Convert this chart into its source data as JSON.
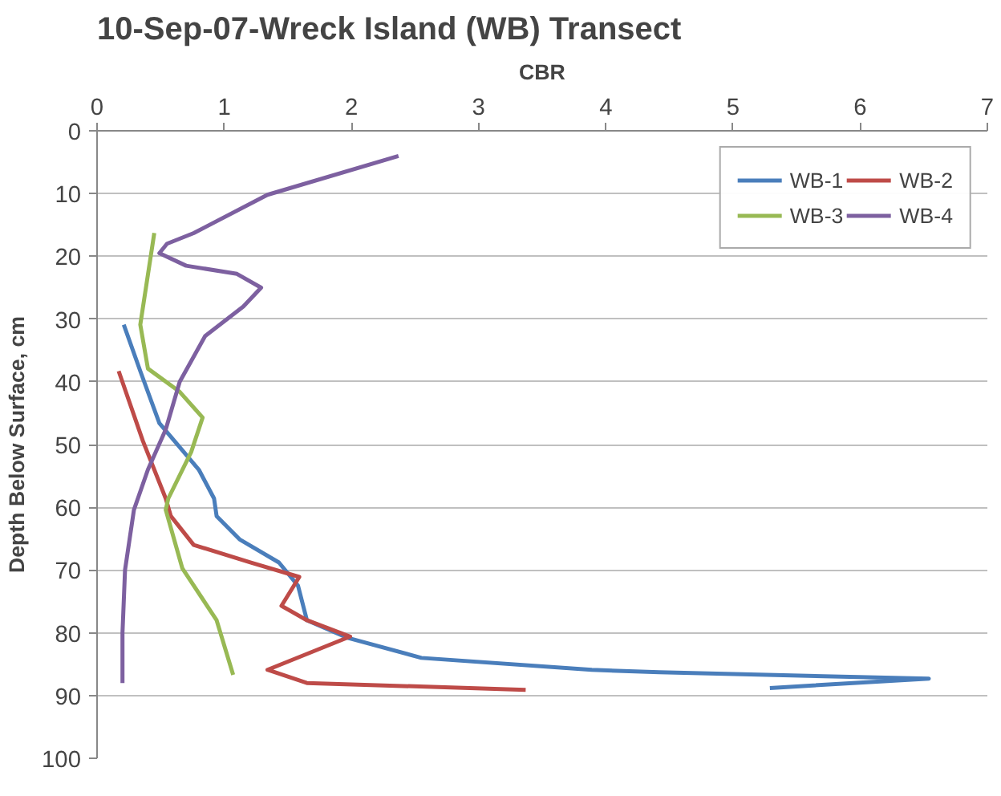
{
  "chart_data": {
    "type": "line",
    "title": "10-Sep-07-Wreck Island (WB) Transect",
    "xlabel": "CBR",
    "ylabel": "Depth Below Surface, cm",
    "xlim": [
      0,
      7
    ],
    "xticks": [
      0,
      1,
      2,
      3,
      4,
      5,
      6,
      7
    ],
    "ylim": [
      100,
      0
    ],
    "yticks": [
      0,
      10,
      20,
      30,
      40,
      50,
      60,
      70,
      80,
      90,
      100
    ],
    "grid": "y",
    "legend": "top right",
    "marker": "none",
    "line_style": "solid",
    "series": [
      {
        "name": "WB-1",
        "color": "#4a7ebb",
        "x": [
          0.21,
          0.34,
          0.49,
          0.8,
          0.92,
          0.94,
          1.12,
          1.43,
          1.58,
          1.65,
          1.97,
          2.55,
          3.89,
          4.42,
          6.54,
          5.29
        ],
        "values": [
          30.9,
          38.3,
          46.6,
          54,
          58.6,
          61.4,
          65.1,
          68.8,
          72.5,
          78,
          80.8,
          84,
          85.9,
          86.3,
          87.3,
          88.8
        ]
      },
      {
        "name": "WB-2",
        "color": "#be4b48",
        "x": [
          0.17,
          0.36,
          0.54,
          0.58,
          0.76,
          1.21,
          1.59,
          1.45,
          1.65,
          1.99,
          1.34,
          1.65,
          3.37
        ],
        "values": [
          38.3,
          49.4,
          58.6,
          61.4,
          66,
          68.8,
          71.1,
          75.7,
          78,
          80.6,
          85.9,
          88,
          89.1
        ]
      },
      {
        "name": "WB-3",
        "color": "#98b954",
        "x": [
          0.45,
          0.34,
          0.4,
          0.65,
          0.83,
          0.74,
          0.56,
          0.54,
          0.67,
          0.94,
          1.07
        ],
        "values": [
          16.3,
          30.9,
          37.9,
          41.6,
          45.7,
          51.2,
          58.6,
          60.4,
          69.7,
          78,
          86.7
        ]
      },
      {
        "name": "WB-4",
        "color": "#7d60a0",
        "x": [
          2.37,
          1.34,
          0.76,
          0.55,
          0.49,
          0.7,
          1.1,
          1.29,
          1.15,
          0.85,
          0.65,
          0.54,
          0.4,
          0.29,
          0.22,
          0.2,
          0.2
        ],
        "values": [
          4,
          10.2,
          16.3,
          18,
          19.5,
          21.5,
          22.8,
          25,
          28,
          32.7,
          40,
          47.6,
          54,
          60.4,
          70,
          80,
          88
        ]
      }
    ]
  }
}
